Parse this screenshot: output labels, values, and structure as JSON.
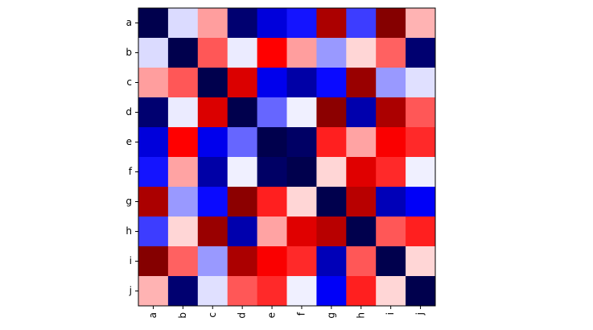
{
  "chart_data": {
    "type": "heatmap",
    "x_categories": [
      "a",
      "b",
      "c",
      "d",
      "e",
      "f",
      "g",
      "h",
      "i",
      "j"
    ],
    "y_categories": [
      "a",
      "b",
      "c",
      "d",
      "e",
      "f",
      "g",
      "h",
      "i",
      "j"
    ],
    "values": [
      [
        -1,
        -0.07,
        0.19,
        -0.9,
        -0.6,
        -0.46,
        0.83,
        -0.38,
        0.98,
        0.15
      ],
      [
        -0.07,
        -1,
        0.33,
        -0.04,
        0.5,
        0.19,
        -0.2,
        0.08,
        0.31,
        -0.9
      ],
      [
        0.19,
        0.33,
        -1,
        0.64,
        -0.55,
        -0.75,
        -0.48,
        0.9,
        -0.2,
        -0.06
      ],
      [
        -0.9,
        -0.04,
        0.64,
        -1,
        -0.3,
        -0.03,
        0.95,
        -0.73,
        0.83,
        0.33
      ],
      [
        -0.6,
        0.5,
        -0.55,
        -0.3,
        -1,
        -0.93,
        0.44,
        0.18,
        0.52,
        0.42
      ],
      [
        -0.46,
        0.18,
        -0.75,
        -0.03,
        -0.93,
        -1,
        0.08,
        0.62,
        0.42,
        -0.03
      ],
      [
        0.83,
        -0.2,
        -0.48,
        0.95,
        0.44,
        0.08,
        -1,
        0.78,
        -0.7,
        -0.52
      ],
      [
        -0.38,
        0.08,
        0.9,
        -0.73,
        0.18,
        0.62,
        0.78,
        -1,
        0.33,
        0.44
      ],
      [
        0.98,
        0.31,
        -0.2,
        0.83,
        0.52,
        0.42,
        -0.7,
        0.33,
        -1,
        0.08
      ],
      [
        0.15,
        -0.9,
        -0.06,
        0.33,
        0.42,
        -0.03,
        -0.52,
        0.44,
        0.08,
        -1
      ]
    ],
    "colormap": "seismic",
    "zlim": [
      -1,
      1
    ]
  }
}
